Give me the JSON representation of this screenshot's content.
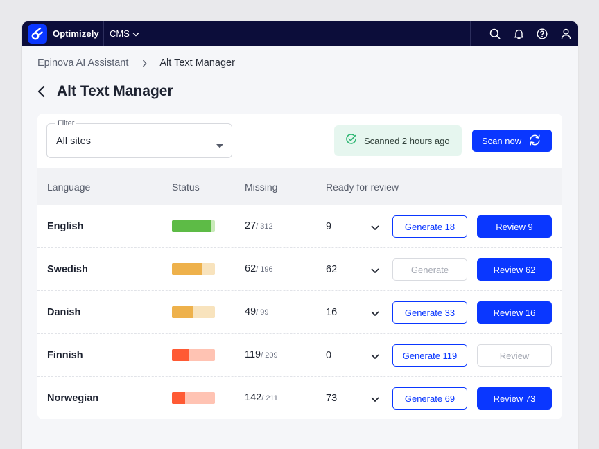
{
  "topbar": {
    "logo_text": "Optimizely",
    "product": "CMS",
    "icons": [
      "search-icon",
      "bell-icon",
      "help-icon",
      "user-icon"
    ]
  },
  "breadcrumb": {
    "parent": "Epinova AI Assistant",
    "current": "Alt Text Manager"
  },
  "page": {
    "title": "Alt Text Manager"
  },
  "filter": {
    "label": "Filter",
    "value": "All sites"
  },
  "scan": {
    "status_text": "Scanned 2 hours ago",
    "button_label": "Scan now"
  },
  "table": {
    "headers": {
      "language": "Language",
      "status": "Status",
      "missing": "Missing",
      "ready": "Ready for review"
    },
    "rows": [
      {
        "language": "English",
        "status_fraction": 0.9,
        "status_color": "#5dbb46",
        "status_track": "#c9eab9",
        "missing": "27",
        "missing_total": "/ 312",
        "ready": "9",
        "generate_label": "Generate 18",
        "generate_enabled": true,
        "review_label": "Review 9",
        "review_enabled": true
      },
      {
        "language": "Swedish",
        "status_fraction": 0.7,
        "status_color": "#eeb14b",
        "status_track": "#f8e3bd",
        "missing": "62",
        "missing_total": "/ 196",
        "ready": "62",
        "generate_label": "Generate",
        "generate_enabled": false,
        "review_label": "Review 62",
        "review_enabled": true
      },
      {
        "language": "Danish",
        "status_fraction": 0.5,
        "status_color": "#eeb14b",
        "status_track": "#f8e3bd",
        "missing": "49",
        "missing_total": "/ 99",
        "ready": "16",
        "generate_label": "Generate 33",
        "generate_enabled": true,
        "review_label": "Review 16",
        "review_enabled": true
      },
      {
        "language": "Finnish",
        "status_fraction": 0.4,
        "status_color": "#ff5a34",
        "status_track": "#ffc3b3",
        "missing": "119",
        "missing_total": "/ 209",
        "ready": "0",
        "generate_label": "Generate 119",
        "generate_enabled": true,
        "review_label": "Review",
        "review_enabled": false
      },
      {
        "language": "Norwegian",
        "status_fraction": 0.3,
        "status_color": "#ff5a34",
        "status_track": "#ffc3b3",
        "missing": "142",
        "missing_total": "/ 211",
        "ready": "73",
        "generate_label": "Generate 69",
        "generate_enabled": true,
        "review_label": "Review 73",
        "review_enabled": true
      }
    ]
  },
  "colors": {
    "accent": "#0a37ff",
    "topbar": "#0c0d3a",
    "scan_status_bg": "#e6f6ef",
    "check": "#2eb673"
  }
}
